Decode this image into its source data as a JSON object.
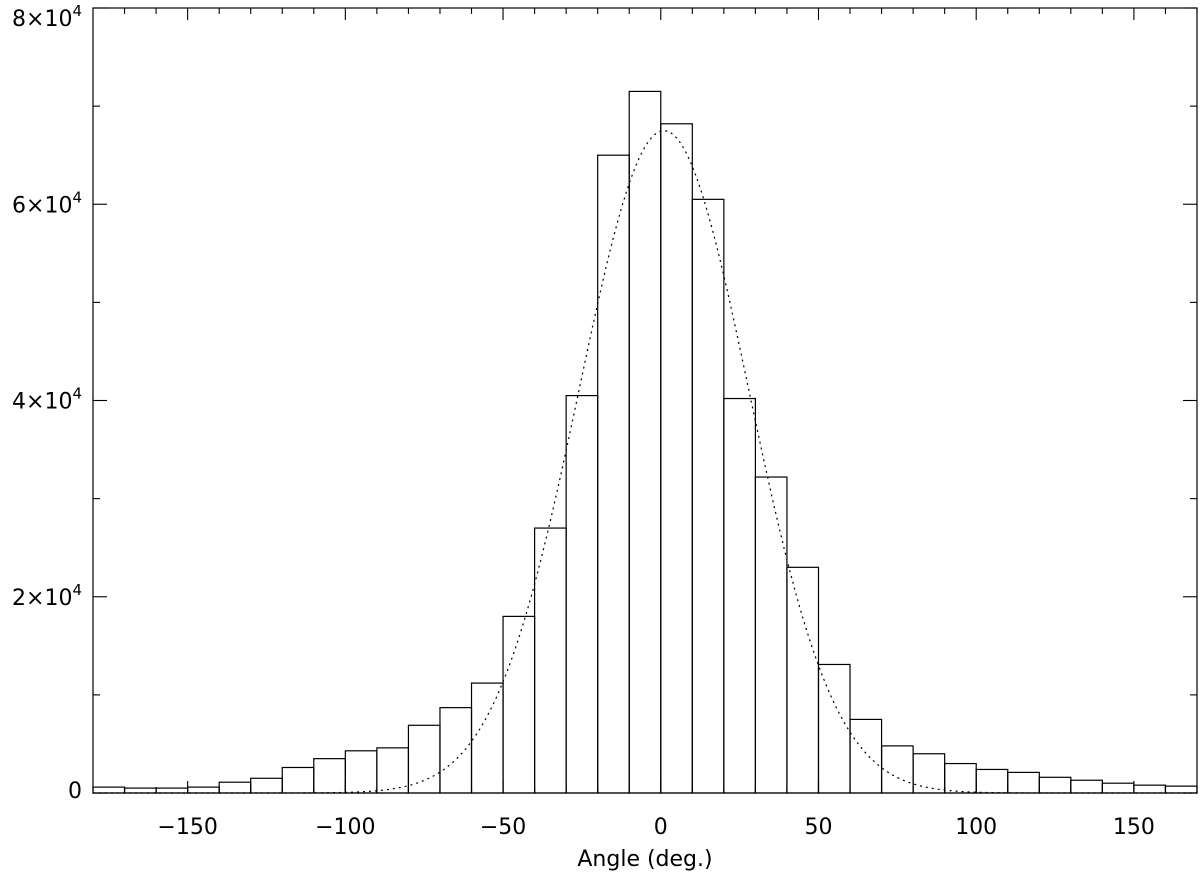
{
  "chart_data": {
    "type": "bar",
    "title": "",
    "xlabel": "Angle (deg.)",
    "ylabel": "",
    "xlim": [
      -180,
      170
    ],
    "ylim": [
      0,
      80000
    ],
    "grid": false,
    "x_ticks": [
      {
        "value": -150,
        "label": "−150"
      },
      {
        "value": -100,
        "label": "−100"
      },
      {
        "value": -50,
        "label": "−50"
      },
      {
        "value": 0,
        "label": "0"
      },
      {
        "value": 50,
        "label": "50"
      },
      {
        "value": 100,
        "label": "100"
      },
      {
        "value": 150,
        "label": "150"
      }
    ],
    "y_ticks": [
      {
        "value": 0,
        "mantissa": "0",
        "exponent": ""
      },
      {
        "value": 20000,
        "mantissa": "2×10",
        "exponent": "4"
      },
      {
        "value": 40000,
        "mantissa": "4×10",
        "exponent": "4"
      },
      {
        "value": 60000,
        "mantissa": "6×10",
        "exponent": "4"
      },
      {
        "value": 80000,
        "mantissa": "8×10",
        "exponent": "4"
      }
    ],
    "x_minor_step": 10,
    "y_minor_step": 10000,
    "bin_width": 10,
    "series": [
      {
        "style": "histogram",
        "bin_starts": [
          -180,
          -170,
          -160,
          -150,
          -140,
          -130,
          -120,
          -110,
          -100,
          -90,
          -80,
          -70,
          -60,
          -50,
          -40,
          -30,
          -20,
          -10,
          0,
          10,
          20,
          30,
          40,
          50,
          60,
          70,
          80,
          90,
          100,
          110,
          120,
          130,
          140,
          150,
          160
        ],
        "values": [
          600,
          500,
          500,
          600,
          1100,
          1500,
          2600,
          3500,
          4300,
          4600,
          6900,
          8700,
          11200,
          18000,
          27000,
          40500,
          65000,
          71500,
          68200,
          60500,
          40200,
          32200,
          23000,
          13100,
          7500,
          4800,
          4000,
          3000,
          2400,
          2100,
          1600,
          1300,
          1000,
          800,
          700
        ]
      },
      {
        "style": "gaussian-fit",
        "line": "dotted",
        "amplitude": 67500,
        "mean": 1,
        "sigma": 27
      }
    ]
  }
}
